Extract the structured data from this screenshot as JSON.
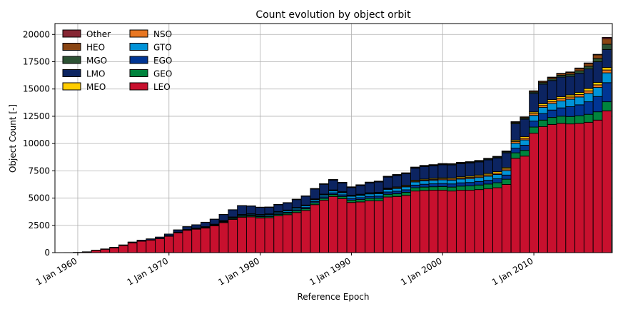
{
  "chart_data": {
    "type": "bar",
    "stacked": true,
    "title": "Count evolution by object orbit",
    "xlabel": "Reference Epoch",
    "ylabel": "Object Count [-]",
    "x_tick_labels": [
      {
        "year": 1960,
        "label": "1 Jan 1960"
      },
      {
        "year": 1970,
        "label": "1 Jan 1970"
      },
      {
        "year": 1980,
        "label": "1 Jan 1980"
      },
      {
        "year": 1990,
        "label": "1 Jan 1990"
      },
      {
        "year": 2000,
        "label": "1 Jan 2000"
      },
      {
        "year": 2010,
        "label": "1 Jan 2010"
      }
    ],
    "xlim": [
      1957.5,
      2018.6
    ],
    "ylim": [
      0,
      21000
    ],
    "y_ticks": [
      0,
      2500,
      5000,
      7500,
      10000,
      12500,
      15000,
      17500,
      20000
    ],
    "y_tick_labels": [
      "0",
      "2500",
      "5000",
      "7500",
      "10000",
      "12500",
      "15000",
      "17500",
      "20000"
    ],
    "grid": true,
    "legend_position": "top-left",
    "legend_columns": 2,
    "x": [
      1959,
      1960,
      1961,
      1962,
      1963,
      1964,
      1965,
      1966,
      1967,
      1968,
      1969,
      1970,
      1971,
      1972,
      1973,
      1974,
      1975,
      1976,
      1977,
      1978,
      1979,
      1980,
      1981,
      1982,
      1983,
      1984,
      1985,
      1986,
      1987,
      1988,
      1989,
      1990,
      1991,
      1992,
      1993,
      1994,
      1995,
      1996,
      1997,
      1998,
      1999,
      2000,
      2001,
      2002,
      2003,
      2004,
      2005,
      2006,
      2007,
      2008,
      2009,
      2010,
      2011,
      2012,
      2013,
      2014,
      2015,
      2016,
      2017,
      2018
    ],
    "series": [
      {
        "name": "LEO",
        "color": "#C8102E",
        "values": [
          5,
          25,
          70,
          210,
          310,
          440,
          650,
          900,
          1050,
          1150,
          1280,
          1500,
          1820,
          2050,
          2150,
          2250,
          2450,
          2750,
          3050,
          3250,
          3280,
          3180,
          3200,
          3380,
          3480,
          3680,
          3870,
          4400,
          4800,
          5150,
          4950,
          4600,
          4650,
          4750,
          4750,
          5100,
          5150,
          5250,
          5650,
          5700,
          5720,
          5720,
          5650,
          5720,
          5720,
          5780,
          5850,
          5950,
          6250,
          8650,
          8850,
          10950,
          11550,
          11750,
          11850,
          11800,
          11850,
          11950,
          12150,
          13000
        ]
      },
      {
        "name": "GEO",
        "color": "#00843D",
        "values": [
          0,
          0,
          0,
          0,
          0,
          0,
          0,
          5,
          5,
          10,
          15,
          20,
          25,
          30,
          40,
          50,
          60,
          70,
          80,
          90,
          100,
          110,
          120,
          130,
          140,
          150,
          160,
          170,
          180,
          190,
          200,
          210,
          220,
          230,
          240,
          250,
          260,
          280,
          300,
          310,
          320,
          340,
          360,
          380,
          400,
          420,
          440,
          460,
          480,
          500,
          520,
          560,
          600,
          640,
          660,
          680,
          700,
          730,
          760,
          830
        ]
      },
      {
        "name": "EGO",
        "color": "#003594",
        "values": [
          0,
          0,
          0,
          0,
          0,
          0,
          0,
          0,
          0,
          0,
          5,
          5,
          10,
          10,
          15,
          20,
          25,
          30,
          35,
          40,
          50,
          60,
          70,
          80,
          90,
          100,
          110,
          120,
          130,
          140,
          150,
          160,
          170,
          180,
          190,
          210,
          220,
          230,
          240,
          260,
          270,
          280,
          290,
          300,
          310,
          320,
          340,
          360,
          380,
          430,
          480,
          550,
          600,
          680,
          760,
          900,
          1000,
          1150,
          1400,
          1750
        ]
      },
      {
        "name": "GTO",
        "color": "#0093D8",
        "values": [
          0,
          0,
          0,
          0,
          0,
          0,
          0,
          0,
          0,
          5,
          10,
          15,
          20,
          25,
          30,
          40,
          50,
          60,
          70,
          80,
          90,
          100,
          110,
          120,
          130,
          140,
          150,
          160,
          170,
          180,
          190,
          200,
          210,
          220,
          230,
          240,
          250,
          270,
          290,
          310,
          320,
          330,
          340,
          350,
          360,
          370,
          380,
          400,
          420,
          450,
          480,
          520,
          560,
          600,
          640,
          680,
          720,
          770,
          830,
          900
        ]
      },
      {
        "name": "NSO",
        "color": "#E87722",
        "values": [
          0,
          0,
          0,
          0,
          0,
          0,
          0,
          0,
          0,
          0,
          0,
          0,
          0,
          0,
          5,
          5,
          10,
          10,
          15,
          15,
          20,
          20,
          25,
          25,
          30,
          30,
          35,
          35,
          40,
          40,
          45,
          45,
          50,
          50,
          60,
          60,
          70,
          70,
          80,
          80,
          90,
          90,
          100,
          100,
          110,
          110,
          120,
          130,
          140,
          150,
          160,
          170,
          180,
          190,
          200,
          210,
          220,
          230,
          240,
          260
        ]
      },
      {
        "name": "MEO",
        "color": "#FFCD00",
        "values": [
          0,
          0,
          0,
          0,
          0,
          0,
          0,
          0,
          0,
          0,
          0,
          5,
          5,
          10,
          10,
          15,
          15,
          20,
          20,
          25,
          25,
          30,
          30,
          35,
          35,
          40,
          40,
          45,
          45,
          50,
          50,
          55,
          55,
          60,
          60,
          65,
          70,
          75,
          80,
          85,
          90,
          95,
          100,
          105,
          110,
          115,
          120,
          125,
          130,
          135,
          140,
          150,
          160,
          170,
          180,
          190,
          200,
          210,
          220,
          230
        ]
      },
      {
        "name": "LMO",
        "color": "#0C2461",
        "values": [
          0,
          0,
          5,
          20,
          30,
          50,
          60,
          70,
          90,
          100,
          120,
          160,
          200,
          250,
          300,
          400,
          450,
          550,
          650,
          800,
          700,
          650,
          600,
          620,
          650,
          720,
          800,
          900,
          900,
          900,
          800,
          700,
          800,
          900,
          950,
          1000,
          1050,
          1050,
          1100,
          1150,
          1150,
          1200,
          1200,
          1200,
          1200,
          1200,
          1250,
          1250,
          1350,
          1500,
          1600,
          1700,
          1800,
          1750,
          1800,
          1700,
          1750,
          1800,
          1900,
          1650
        ]
      },
      {
        "name": "MGO",
        "color": "#2C5234",
        "values": [
          0,
          0,
          0,
          0,
          0,
          0,
          0,
          0,
          0,
          0,
          0,
          0,
          5,
          5,
          5,
          10,
          10,
          10,
          15,
          15,
          20,
          20,
          20,
          25,
          25,
          30,
          30,
          30,
          35,
          35,
          40,
          40,
          45,
          45,
          50,
          50,
          55,
          55,
          60,
          60,
          65,
          65,
          70,
          70,
          75,
          75,
          80,
          80,
          90,
          100,
          110,
          120,
          140,
          150,
          170,
          190,
          230,
          250,
          300,
          480
        ]
      },
      {
        "name": "HEO",
        "color": "#8A4513",
        "values": [
          0,
          0,
          0,
          0,
          0,
          0,
          0,
          0,
          0,
          0,
          0,
          0,
          0,
          0,
          0,
          0,
          0,
          0,
          0,
          0,
          0,
          0,
          5,
          5,
          5,
          5,
          10,
          10,
          10,
          10,
          15,
          15,
          15,
          20,
          20,
          20,
          25,
          25,
          30,
          30,
          30,
          35,
          35,
          40,
          40,
          45,
          50,
          55,
          60,
          70,
          80,
          90,
          110,
          130,
          150,
          180,
          220,
          260,
          330,
          500
        ]
      },
      {
        "name": "Other",
        "color": "#862633",
        "values": [
          0,
          0,
          0,
          0,
          0,
          0,
          0,
          0,
          0,
          0,
          0,
          0,
          0,
          0,
          0,
          0,
          0,
          0,
          0,
          0,
          0,
          0,
          0,
          0,
          0,
          0,
          0,
          5,
          5,
          5,
          5,
          5,
          5,
          5,
          5,
          5,
          10,
          10,
          10,
          10,
          10,
          10,
          10,
          10,
          10,
          15,
          15,
          15,
          15,
          20,
          20,
          25,
          25,
          30,
          30,
          35,
          35,
          40,
          50,
          130
        ]
      }
    ]
  }
}
